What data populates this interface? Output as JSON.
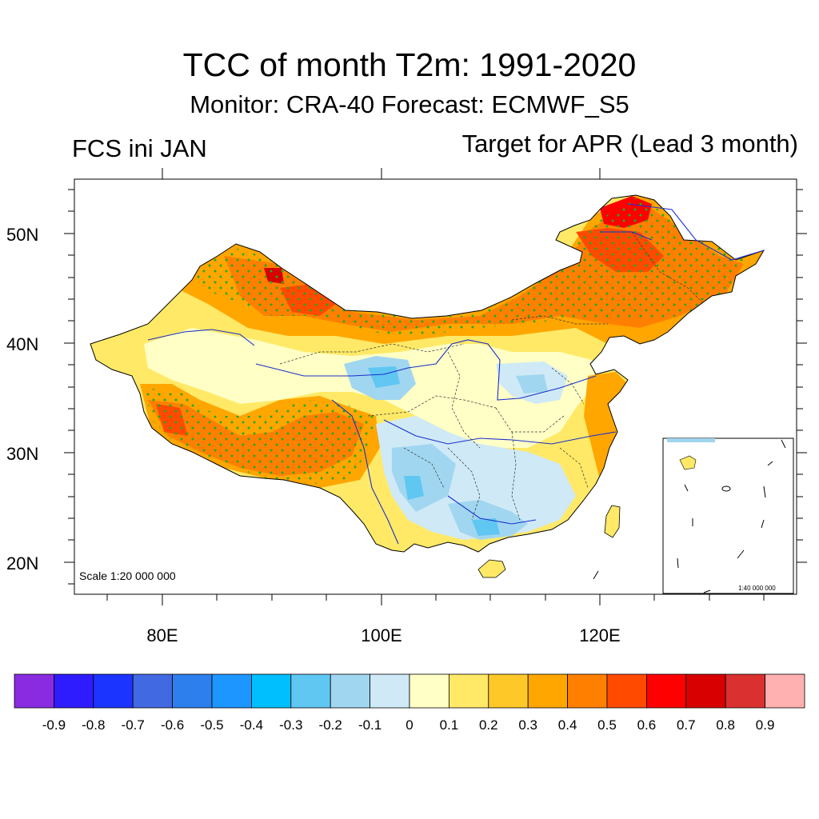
{
  "title": "TCC of month T2m: 1991-2020",
  "subtitle": "Monitor: CRA-40   Forecast: ECMWF_S5",
  "left_label": "FCS ini JAN",
  "right_label": "Target for APR (Lead 3 month)",
  "scale_text": "Scale 1:20 000 000",
  "inset_scale_text": "1:40 000 000",
  "lat_labels": [
    "50N",
    "40N",
    "30N",
    "20N"
  ],
  "lon_labels": [
    "80E",
    "100E",
    "120E"
  ],
  "colorbar": {
    "colors": [
      "#8a2be2",
      "#2e1cff",
      "#1c34ff",
      "#4169e1",
      "#2e7fee",
      "#1e96ff",
      "#00bfff",
      "#5fc7f2",
      "#a0d6f0",
      "#cfe9f6",
      "#ffffc6",
      "#ffe967",
      "#ffc829",
      "#ffa600",
      "#ff8000",
      "#ff4a00",
      "#ff0000",
      "#d80000",
      "#da3030",
      "#ffb0b0"
    ],
    "labels": [
      "-0.9",
      "-0.8",
      "-0.7",
      "-0.6",
      "-0.5",
      "-0.4",
      "-0.3",
      "-0.2",
      "-0.1",
      "0",
      "0.1",
      "0.2",
      "0.3",
      "0.4",
      "0.5",
      "0.6",
      "0.7",
      "0.8",
      "0.9"
    ]
  },
  "colors": {
    "stipple": "#22aa22",
    "river": "#1a2fcc",
    "border": "#000000"
  }
}
